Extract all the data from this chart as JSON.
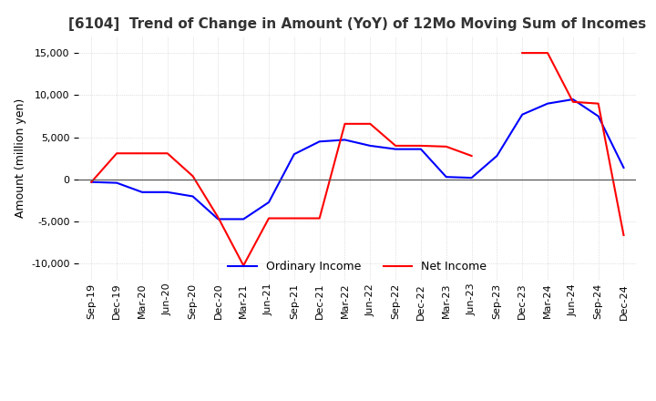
{
  "title": "[6104]  Trend of Change in Amount (YoY) of 12Mo Moving Sum of Incomes",
  "ylabel": "Amount (million yen)",
  "ylim": [
    -12000,
    17000
  ],
  "yticks": [
    -10000,
    -5000,
    0,
    5000,
    10000,
    15000
  ],
  "background_color": "#ffffff",
  "grid_color": "#c8c8c8",
  "ordinary_income_color": "#0000ff",
  "net_income_color": "#ff0000",
  "labels": [
    "Sep-19",
    "Dec-19",
    "Mar-20",
    "Jun-20",
    "Sep-20",
    "Dec-20",
    "Mar-21",
    "Jun-21",
    "Sep-21",
    "Dec-21",
    "Mar-22",
    "Jun-22",
    "Sep-22",
    "Dec-22",
    "Mar-23",
    "Jun-23",
    "Sep-23",
    "Dec-23",
    "Mar-24",
    "Jun-24",
    "Sep-24",
    "Dec-24"
  ],
  "ordinary_income": [
    -300,
    -400,
    -1500,
    -1500,
    -2000,
    -4700,
    -4700,
    -2700,
    3000,
    4500,
    4700,
    4000,
    3600,
    3600,
    300,
    200,
    2800,
    7700,
    9000,
    9500,
    7500,
    1400
  ],
  "net_income": [
    -300,
    3100,
    3100,
    3100,
    400,
    -4500,
    -10200,
    -4600,
    -4600,
    -4600,
    6600,
    6600,
    4000,
    4000,
    3900,
    2800,
    null,
    15000,
    15000,
    9200,
    9000,
    -6600
  ]
}
